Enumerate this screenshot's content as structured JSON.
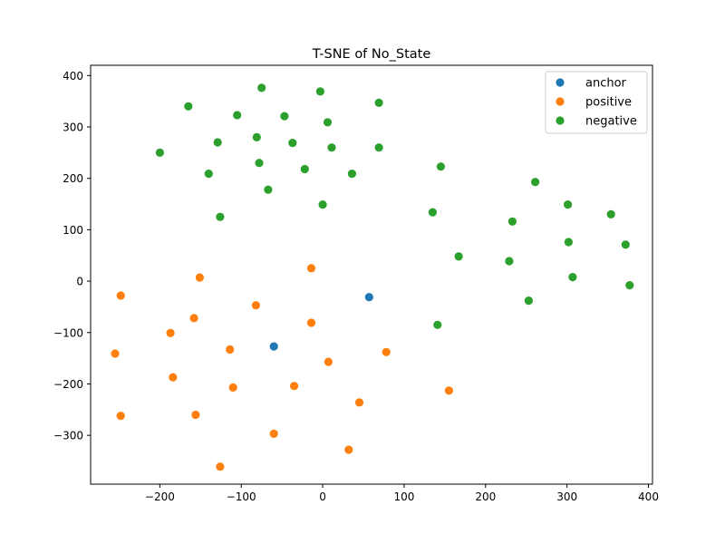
{
  "chart_data": {
    "type": "scatter",
    "title": "T-SNE of No_State",
    "xlabel": "",
    "ylabel": "",
    "xlim": [
      -285,
      405
    ],
    "ylim": [
      -395,
      420
    ],
    "xticks": [
      -200,
      -100,
      0,
      100,
      200,
      300,
      400
    ],
    "yticks": [
      -300,
      -200,
      -100,
      0,
      100,
      200,
      300,
      400
    ],
    "xtick_labels": [
      "−200",
      "−100",
      "0",
      "100",
      "200",
      "300",
      "400"
    ],
    "ytick_labels": [
      "−300",
      "−200",
      "−100",
      "0",
      "100",
      "200",
      "300",
      "400"
    ],
    "grid": false,
    "legend_position": "top-right",
    "series": [
      {
        "name": "anchor",
        "color": "#1f77b4",
        "points": [
          [
            57,
            -31
          ],
          [
            -60,
            -127
          ]
        ]
      },
      {
        "name": "positive",
        "color": "#ff7f0e",
        "points": [
          [
            -248,
            -28
          ],
          [
            -151,
            7
          ],
          [
            -255,
            -141
          ],
          [
            -187,
            -101
          ],
          [
            -158,
            -72
          ],
          [
            -82,
            -47
          ],
          [
            -14,
            25
          ],
          [
            -14,
            -81
          ],
          [
            -114,
            -133
          ],
          [
            -184,
            -187
          ],
          [
            -110,
            -207
          ],
          [
            -35,
            -204
          ],
          [
            7,
            -157
          ],
          [
            78,
            -138
          ],
          [
            -248,
            -262
          ],
          [
            -156,
            -260
          ],
          [
            -60,
            -297
          ],
          [
            45,
            -236
          ],
          [
            155,
            -213
          ],
          [
            32,
            -328
          ],
          [
            -126,
            -361
          ]
        ]
      },
      {
        "name": "negative",
        "color": "#2ca02c",
        "points": [
          [
            -165,
            340
          ],
          [
            -75,
            376
          ],
          [
            -3,
            369
          ],
          [
            69,
            347
          ],
          [
            -105,
            323
          ],
          [
            -47,
            321
          ],
          [
            6,
            309
          ],
          [
            -129,
            270
          ],
          [
            -81,
            280
          ],
          [
            -37,
            269
          ],
          [
            11,
            260
          ],
          [
            69,
            260
          ],
          [
            -200,
            250
          ],
          [
            -78,
            230
          ],
          [
            -22,
            218
          ],
          [
            145,
            223
          ],
          [
            -140,
            209
          ],
          [
            36,
            209
          ],
          [
            -67,
            178
          ],
          [
            0,
            149
          ],
          [
            -126,
            125
          ],
          [
            135,
            134
          ],
          [
            233,
            116
          ],
          [
            261,
            193
          ],
          [
            301,
            149
          ],
          [
            354,
            130
          ],
          [
            302,
            76
          ],
          [
            167,
            48
          ],
          [
            229,
            39
          ],
          [
            372,
            71
          ],
          [
            307,
            8
          ],
          [
            253,
            -38
          ],
          [
            377,
            -8
          ],
          [
            141,
            -85
          ]
        ]
      }
    ]
  }
}
